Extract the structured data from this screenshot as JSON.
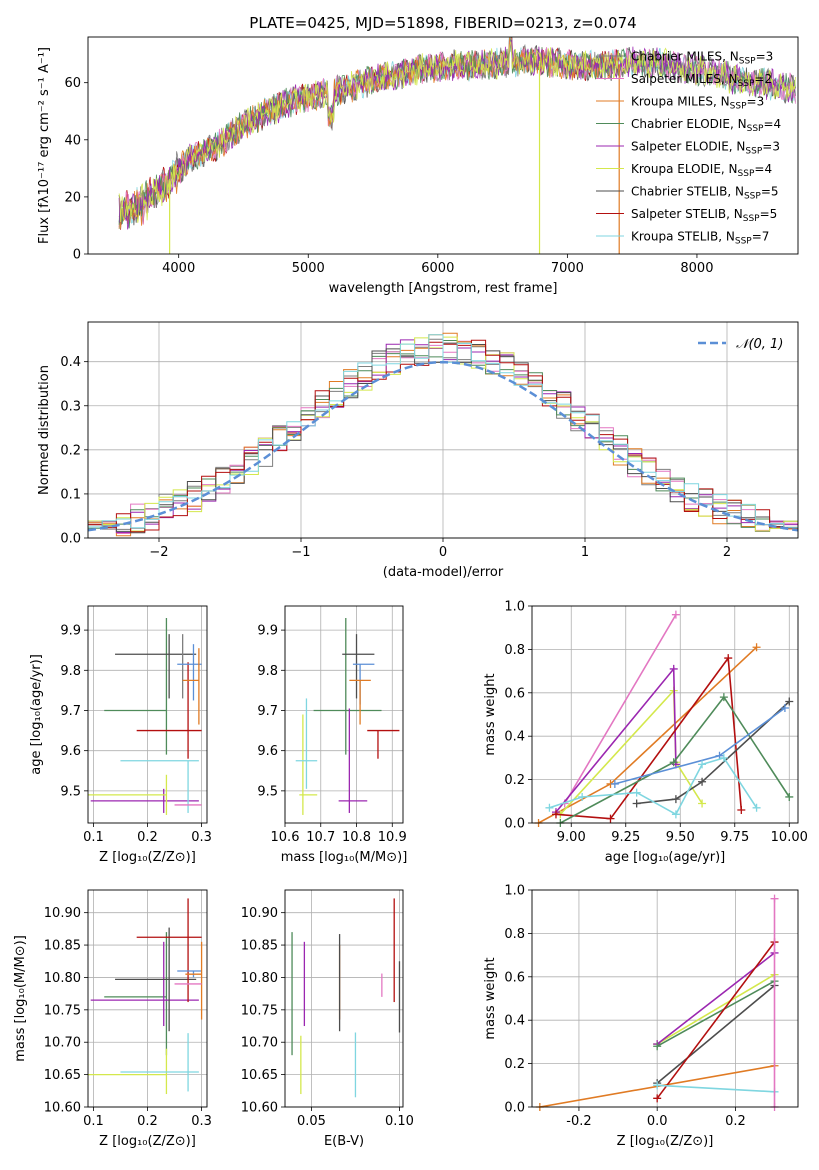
{
  "figure_title": "PLATE=0425, MJD=51898, FIBERID=0213, z=0.074",
  "chart_data": [
    {
      "id": "spectrum",
      "type": "line",
      "title": "PLATE=0425, MJD=51898, FIBERID=0213, z=0.074",
      "xlabel": "wavelength [Angstrom, rest frame]",
      "ylabel": "Flux [fλ10⁻¹⁷ erg cm⁻² s⁻¹ A⁻¹]",
      "xlim": [
        3300,
        8780
      ],
      "ylim": [
        0,
        76
      ],
      "xticks": [
        4000,
        5000,
        6000,
        7000,
        8000
      ],
      "yticks": [
        0,
        20,
        40,
        60
      ],
      "grid": false,
      "legend_position": "top-right",
      "legend": [
        {
          "label": "Chabrier MILES, N",
          "sub": "SSP",
          "suffix": "=3",
          "color": "#7f7f7f"
        },
        {
          "label": "Salpeter MILES, N",
          "sub": "SSP",
          "suffix": "=2",
          "color": "#e377c2"
        },
        {
          "label": "Kroupa MILES, N",
          "sub": "SSP",
          "suffix": "=3",
          "color": "#e07b24"
        },
        {
          "label": "Chabrier ELODIE, N",
          "sub": "SSP",
          "suffix": "=4",
          "color": "#4f8b5a"
        },
        {
          "label": "Salpeter ELODIE, N",
          "sub": "SSP",
          "suffix": "=3",
          "color": "#9b27b0"
        },
        {
          "label": "Kroupa ELODIE, N",
          "sub": "SSP",
          "suffix": "=4",
          "color": "#d4e84c"
        },
        {
          "label": "Chabrier STELIB, N",
          "sub": "SSP",
          "suffix": "=5",
          "color": "#4d4d4d"
        },
        {
          "label": "Salpeter STELIB, N",
          "sub": "SSP",
          "suffix": "=5",
          "color": "#b30f0f"
        },
        {
          "label": "Kroupa STELIB, N",
          "sub": "SSP",
          "suffix": "=7",
          "color": "#7fd6e0"
        }
      ],
      "continuum": [
        [
          3540,
          14
        ],
        [
          3700,
          17
        ],
        [
          3800,
          21
        ],
        [
          3900,
          24
        ],
        [
          4000,
          29
        ],
        [
          4100,
          34
        ],
        [
          4300,
          38
        ],
        [
          4500,
          45
        ],
        [
          4700,
          50
        ],
        [
          4900,
          54
        ],
        [
          5100,
          56
        ],
        [
          5300,
          58
        ],
        [
          5500,
          61
        ],
        [
          5700,
          63
        ],
        [
          5900,
          65
        ],
        [
          6100,
          66
        ],
        [
          6300,
          66
        ],
        [
          6500,
          67
        ],
        [
          6700,
          68
        ],
        [
          6900,
          67
        ],
        [
          7100,
          66
        ],
        [
          7300,
          66
        ],
        [
          7500,
          67
        ],
        [
          7700,
          67
        ],
        [
          7900,
          65
        ],
        [
          8100,
          64
        ],
        [
          8300,
          61
        ],
        [
          8500,
          60
        ],
        [
          8700,
          58
        ]
      ],
      "gaps": [
        [
          3925,
          3935
        ],
        [
          6780,
          6790
        ],
        [
          7395,
          7405
        ]
      ]
    },
    {
      "id": "residuals",
      "type": "histogram",
      "xlabel": "(data-model)/error",
      "ylabel": "Normed distribution",
      "xlim": [
        -2.5,
        2.5
      ],
      "ylim": [
        0,
        0.49
      ],
      "xticks": [
        -2,
        -1,
        0,
        1,
        2
      ],
      "yticks": [
        0.0,
        0.1,
        0.2,
        0.3,
        0.4
      ],
      "grid": true,
      "legend_position": "top-right",
      "reference_curve": {
        "label": "𝒩(0, 1)",
        "color": "#5b8fd6",
        "style": "dashed"
      },
      "bin_width": 0.1
    },
    {
      "id": "age_vs_Z",
      "type": "errorbar",
      "xlabel": "Z [log₁₀(Z/Z⊙)]",
      "ylabel": "age  [log₁₀(age/yr)]",
      "xlim": [
        0.09,
        0.31
      ],
      "ylim": [
        9.42,
        9.96
      ],
      "xticks": [
        0.1,
        0.2,
        0.3
      ],
      "yticks": [
        9.5,
        9.6,
        9.7,
        9.8,
        9.9
      ],
      "grid": true,
      "points": [
        {
          "color": "#4f8b5a",
          "x": 0.235,
          "xerr": [
            0.115,
            0.0
          ],
          "y": 9.7,
          "yerr": [
            0.11,
            0.23
          ]
        },
        {
          "color": "#9b27b0",
          "x": 0.23,
          "xerr": [
            0.135,
            0.065
          ],
          "y": 9.475,
          "yerr": [
            0.03,
            0.03
          ]
        },
        {
          "color": "#d4e84c",
          "x": 0.235,
          "xerr": [
            0.145,
            0.0
          ],
          "y": 9.49,
          "yerr": [
            0.05,
            0.05
          ]
        },
        {
          "color": "#4d4d4d",
          "x": 0.24,
          "xerr": [
            0.1,
            0.05
          ],
          "y": 9.84,
          "yerr": [
            0.11,
            0.05
          ]
        },
        {
          "color": "#7f7f7f",
          "x": 0.265,
          "xerr": [
            0.0,
            0.0
          ],
          "y": 9.81,
          "yerr": [
            0.08,
            0.08
          ]
        },
        {
          "color": "#b30f0f",
          "x": 0.275,
          "xerr": [
            0.095,
            0.025
          ],
          "y": 9.65,
          "yerr": [
            0.07,
            0.17
          ]
        },
        {
          "color": "#7fd6e0",
          "x": 0.275,
          "xerr": [
            0.125,
            0.02
          ],
          "y": 9.575,
          "yerr": [
            0.13,
            0.0
          ]
        },
        {
          "color": "#5b8fd6",
          "x": 0.285,
          "xerr": [
            0.03,
            0.015
          ],
          "y": 9.815,
          "yerr": [
            0.09,
            0.05
          ]
        },
        {
          "color": "#e07b24",
          "x": 0.295,
          "xerr": [
            0.03,
            0.0
          ],
          "y": 9.775,
          "yerr": [
            0.11,
            0.08
          ]
        },
        {
          "color": "#e377c2",
          "x": 0.3,
          "xerr": [
            0.05,
            0.0
          ],
          "y": 9.465,
          "yerr": [
            0.0,
            0.0
          ]
        }
      ]
    },
    {
      "id": "age_vs_mass",
      "type": "errorbar",
      "xlabel": "mass [log₁₀(M/M⊙)]",
      "ylabel": "",
      "xlim": [
        10.6,
        10.93
      ],
      "ylim": [
        9.42,
        9.96
      ],
      "xticks": [
        10.6,
        10.7,
        10.8,
        10.9
      ],
      "yticks": [
        9.5,
        9.6,
        9.7,
        9.8,
        9.9
      ],
      "grid": true,
      "points": [
        {
          "color": "#4f8b5a",
          "x": 10.77,
          "xerr": [
            0.09,
            0.1
          ],
          "y": 9.7,
          "yerr": [
            0.11,
            0.23
          ]
        },
        {
          "color": "#9b27b0",
          "x": 10.78,
          "xerr": [
            0.03,
            0.05
          ],
          "y": 9.475,
          "yerr": [
            0.03,
            0.23
          ]
        },
        {
          "color": "#d4e84c",
          "x": 10.65,
          "xerr": [
            0.01,
            0.04
          ],
          "y": 9.49,
          "yerr": [
            0.05,
            0.2
          ]
        },
        {
          "color": "#4d4d4d",
          "x": 10.8,
          "xerr": [
            0.04,
            0.05
          ],
          "y": 9.84,
          "yerr": [
            0.11,
            0.05
          ]
        },
        {
          "color": "#b30f0f",
          "x": 10.86,
          "xerr": [
            0.03,
            0.06
          ],
          "y": 9.65,
          "yerr": [
            0.07,
            0.0
          ]
        },
        {
          "color": "#7fd6e0",
          "x": 10.66,
          "xerr": [
            0.03,
            0.03
          ],
          "y": 9.575,
          "yerr": [
            0.07,
            0.155
          ]
        },
        {
          "color": "#5b8fd6",
          "x": 10.81,
          "xerr": [
            0.02,
            0.04
          ],
          "y": 9.815,
          "yerr": [
            0.1,
            0.0
          ]
        },
        {
          "color": "#e07b24",
          "x": 10.81,
          "xerr": [
            0.03,
            0.03
          ],
          "y": 9.775,
          "yerr": [
            0.11,
            0.0
          ]
        }
      ]
    },
    {
      "id": "weight_vs_age",
      "type": "line",
      "xlabel": "age  [log₁₀(age/yr)]",
      "ylabel": "mass weight",
      "xlim": [
        8.82,
        10.04
      ],
      "ylim": [
        0,
        1
      ],
      "xticks": [
        9.0,
        9.25,
        9.5,
        9.75,
        10.0
      ],
      "yticks": [
        0.0,
        0.2,
        0.4,
        0.6,
        0.8,
        1.0
      ],
      "grid": true,
      "series": [
        {
          "color": "#e377c2",
          "points": [
            [
              8.97,
              0.09
            ],
            [
              9.48,
              0.96
            ]
          ]
        },
        {
          "color": "#e07b24",
          "points": [
            [
              8.85,
              0.0
            ],
            [
              9.18,
              0.18
            ],
            [
              9.85,
              0.81
            ]
          ]
        },
        {
          "color": "#d4e84c",
          "points": [
            [
              8.95,
              0.04
            ],
            [
              9.47,
              0.61
            ],
            [
              9.48,
              0.28
            ],
            [
              9.6,
              0.09
            ]
          ]
        },
        {
          "color": "#9b27b0",
          "points": [
            [
              8.93,
              0.05
            ],
            [
              9.47,
              0.71
            ],
            [
              9.48,
              0.27
            ]
          ]
        },
        {
          "color": "#b30f0f",
          "points": [
            [
              8.93,
              0.04
            ],
            [
              9.18,
              0.02
            ],
            [
              9.72,
              0.76
            ],
            [
              9.78,
              0.06
            ]
          ]
        },
        {
          "color": "#4f8b5a",
          "points": [
            [
              8.95,
              0.0
            ],
            [
              9.47,
              0.28
            ],
            [
              9.7,
              0.58
            ],
            [
              10.0,
              0.12
            ]
          ]
        },
        {
          "color": "#4d4d4d",
          "points": [
            [
              9.3,
              0.09
            ],
            [
              9.48,
              0.11
            ],
            [
              9.6,
              0.19
            ],
            [
              10.0,
              0.56
            ]
          ]
        },
        {
          "color": "#5b8fd6",
          "points": [
            [
              9.2,
              0.18
            ],
            [
              9.68,
              0.31
            ],
            [
              9.98,
              0.53
            ]
          ]
        },
        {
          "color": "#7fd6e0",
          "points": [
            [
              8.9,
              0.07
            ],
            [
              9.05,
              0.12
            ],
            [
              9.3,
              0.14
            ],
            [
              9.48,
              0.04
            ],
            [
              9.6,
              0.27
            ],
            [
              9.7,
              0.3
            ],
            [
              9.85,
              0.07
            ]
          ]
        }
      ]
    },
    {
      "id": "mass_vs_Z",
      "type": "errorbar",
      "xlabel": "Z [log₁₀(Z/Z⊙)]",
      "ylabel": "mass [log₁₀(M/M⊙)]",
      "xlim": [
        0.09,
        0.31
      ],
      "ylim": [
        10.6,
        10.935
      ],
      "xticks": [
        0.1,
        0.2,
        0.3
      ],
      "yticks": [
        10.6,
        10.65,
        10.7,
        10.75,
        10.8,
        10.85,
        10.9
      ],
      "grid": true,
      "points": [
        {
          "color": "#4f8b5a",
          "x": 0.235,
          "xerr": [
            0.115,
            0.0
          ],
          "y": 10.77,
          "yerr": [
            0.09,
            0.1
          ]
        },
        {
          "color": "#9b27b0",
          "x": 0.23,
          "xerr": [
            0.135,
            0.065
          ],
          "y": 10.765,
          "yerr": [
            0.04,
            0.09
          ]
        },
        {
          "color": "#d4e84c",
          "x": 0.235,
          "xerr": [
            0.145,
            0.0
          ],
          "y": 10.65,
          "yerr": [
            0.03,
            0.04
          ]
        },
        {
          "color": "#4d4d4d",
          "x": 0.24,
          "xerr": [
            0.1,
            0.05
          ],
          "y": 10.797,
          "yerr": [
            0.08,
            0.08
          ]
        },
        {
          "color": "#b30f0f",
          "x": 0.275,
          "xerr": [
            0.095,
            0.025
          ],
          "y": 10.862,
          "yerr": [
            0.1,
            0.06
          ]
        },
        {
          "color": "#7fd6e0",
          "x": 0.275,
          "xerr": [
            0.125,
            0.02
          ],
          "y": 10.654,
          "yerr": [
            0.03,
            0.06
          ]
        },
        {
          "color": "#5b8fd6",
          "x": 0.285,
          "xerr": [
            0.03,
            0.015
          ],
          "y": 10.81,
          "yerr": [
            0.01,
            0.0
          ]
        },
        {
          "color": "#e07b24",
          "x": 0.3,
          "xerr": [
            0.03,
            0.0
          ],
          "y": 10.805,
          "yerr": [
            0.07,
            0.05
          ]
        },
        {
          "color": "#e377c2",
          "x": 0.3,
          "xerr": [
            0.05,
            0.0
          ],
          "y": 10.79,
          "yerr": [
            0.0,
            0.0
          ]
        }
      ]
    },
    {
      "id": "mass_vs_EBV",
      "type": "errorbar",
      "xlabel": "E(B-V)",
      "ylabel": "",
      "xlim": [
        0.035,
        0.102
      ],
      "ylim": [
        10.6,
        10.935
      ],
      "xticks": [
        0.05,
        0.1
      ],
      "yticks": [
        10.6,
        10.65,
        10.7,
        10.75,
        10.8,
        10.85,
        10.9
      ],
      "grid": true,
      "points": [
        {
          "color": "#4f8b5a",
          "x": 0.039,
          "y": 10.77,
          "yerr": [
            0.09,
            0.1
          ]
        },
        {
          "color": "#d4e84c",
          "x": 0.044,
          "y": 10.66,
          "yerr": [
            0.04,
            0.05
          ]
        },
        {
          "color": "#9b27b0",
          "x": 0.046,
          "y": 10.765,
          "yerr": [
            0.04,
            0.09
          ]
        },
        {
          "color": "#e07b24",
          "x": 0.066,
          "y": 10.8,
          "yerr": [
            0.065,
            0.05
          ]
        },
        {
          "color": "#4d4d4d",
          "x": 0.066,
          "y": 10.797,
          "yerr": [
            0.08,
            0.07
          ]
        },
        {
          "color": "#7fd6e0",
          "x": 0.075,
          "y": 10.665,
          "yerr": [
            0.05,
            0.05
          ]
        },
        {
          "color": "#e377c2",
          "x": 0.09,
          "y": 10.788,
          "yerr": [
            0.018,
            0.018
          ]
        },
        {
          "color": "#b30f0f",
          "x": 0.097,
          "y": 10.862,
          "yerr": [
            0.1,
            0.06
          ]
        },
        {
          "color": "#4d4d4d",
          "x": 0.1,
          "y": 10.77,
          "yerr": [
            0.055,
            0.055
          ]
        }
      ]
    },
    {
      "id": "weight_vs_Z",
      "type": "line",
      "xlabel": "Z [log₁₀(Z/Z⊙)]",
      "ylabel": "mass weight",
      "xlim": [
        -0.32,
        0.36
      ],
      "ylim": [
        0,
        1
      ],
      "xticks": [
        -0.2,
        0.0,
        0.2
      ],
      "yticks": [
        0.0,
        0.2,
        0.4,
        0.6,
        0.8,
        1.0
      ],
      "grid": true,
      "series": [
        {
          "color": "#e07b24",
          "points": [
            [
              -0.3,
              0.0
            ],
            [
              0.3,
              0.19
            ]
          ]
        },
        {
          "color": "#d4e84c",
          "points": [
            [
              0.0,
              0.29
            ],
            [
              0.3,
              0.61
            ]
          ]
        },
        {
          "color": "#9b27b0",
          "points": [
            [
              0.0,
              0.29
            ],
            [
              0.3,
              0.71
            ]
          ]
        },
        {
          "color": "#4f8b5a",
          "points": [
            [
              0.0,
              0.28
            ],
            [
              0.3,
              0.58
            ]
          ]
        },
        {
          "color": "#4d4d4d",
          "points": [
            [
              0.0,
              0.11
            ],
            [
              0.3,
              0.56
            ]
          ]
        },
        {
          "color": "#b30f0f",
          "points": [
            [
              0.0,
              0.04
            ],
            [
              0.3,
              0.76
            ]
          ]
        },
        {
          "color": "#7fd6e0",
          "points": [
            [
              0.0,
              0.1
            ],
            [
              0.3,
              0.07
            ]
          ]
        },
        {
          "color": "#e377c2",
          "points": [
            [
              0.3,
              0.96
            ],
            [
              0.3,
              0.0
            ]
          ]
        }
      ]
    }
  ]
}
